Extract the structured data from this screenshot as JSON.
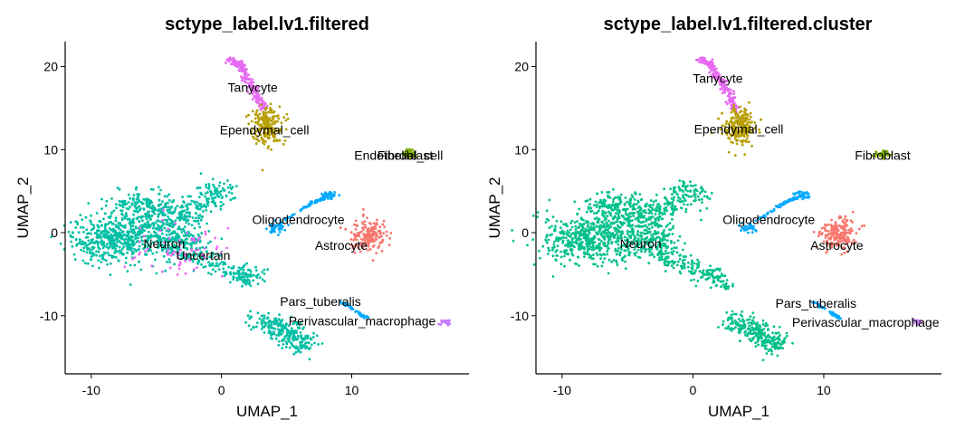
{
  "chart_data": [
    {
      "type": "scatter",
      "title": "sctype_label.lv1.filtered",
      "xlabel": "UMAP_1",
      "ylabel": "UMAP_2",
      "xlim": [
        -12,
        19
      ],
      "ylim": [
        -17,
        23
      ],
      "xticks": [
        -10,
        0,
        10
      ],
      "yticks": [
        -10,
        0,
        10,
        20
      ],
      "grid": false,
      "legend": "none",
      "clusters": [
        {
          "name": "Neuron",
          "color": "#00BFA4",
          "label_at": [
            -4.4,
            -1.3
          ]
        },
        {
          "name": "Uncertain",
          "color": "#E76BF3",
          "label_at": [
            -1.4,
            -2.7
          ]
        },
        {
          "name": "Tanycyte",
          "color": "#E76BF3",
          "label_at": [
            2.4,
            17.5
          ]
        },
        {
          "name": "Ependymal_cell",
          "color": "#B79F00",
          "label_at": [
            3.3,
            12.4
          ]
        },
        {
          "name": "Oligodendrocyte",
          "color": "#00A9FF",
          "label_at": [
            5.9,
            1.6
          ]
        },
        {
          "name": "Astrocyte",
          "color": "#F8766D",
          "label_at": [
            9.2,
            -1.5
          ]
        },
        {
          "name": "Endothelial_cell",
          "color": "#7CAE00",
          "label_at": [
            13.6,
            9.3
          ]
        },
        {
          "name": "Fibroblast",
          "color": "#7CAE00",
          "label_at": [
            14.1,
            9.3
          ]
        },
        {
          "name": "Pars_tuberalis",
          "color": "#00A9FF",
          "label_at": [
            7.6,
            -8.3
          ]
        },
        {
          "name": "Perivascular_macrophage",
          "color": "#C77CFF",
          "label_at": [
            10.8,
            -10.6
          ]
        }
      ]
    },
    {
      "type": "scatter",
      "title": "sctype_label.lv1.filtered.cluster",
      "xlabel": "UMAP_1",
      "ylabel": "UMAP_2",
      "xlim": [
        -12,
        19
      ],
      "ylim": [
        -17,
        23
      ],
      "xticks": [
        -10,
        0,
        10
      ],
      "yticks": [
        -10,
        0,
        10,
        20
      ],
      "grid": false,
      "legend": "none",
      "clusters": [
        {
          "name": "Tanycyte",
          "color": "#E76BF3",
          "label_at": [
            1.9,
            18.6
          ]
        },
        {
          "name": "Ependymal_cell",
          "color": "#B79F00",
          "label_at": [
            3.5,
            12.5
          ]
        },
        {
          "name": "Fibroblast",
          "color": "#7CAE00",
          "label_at": [
            14.5,
            9.3
          ]
        },
        {
          "name": "Oligodendrocyte",
          "color": "#00A9FF",
          "label_at": [
            5.8,
            1.6
          ]
        },
        {
          "name": "Neuron",
          "color": "#00C08B",
          "label_at": [
            -4.0,
            -1.3
          ]
        },
        {
          "name": "Astrocyte",
          "color": "#F8766D",
          "label_at": [
            11.0,
            -1.5
          ]
        },
        {
          "name": "Pars_tuberalis",
          "color": "#00A9FF",
          "label_at": [
            9.4,
            -8.5
          ]
        },
        {
          "name": "Perivascular_macrophage",
          "color": "#C77CFF",
          "label_at": [
            13.2,
            -10.8
          ]
        }
      ]
    }
  ]
}
